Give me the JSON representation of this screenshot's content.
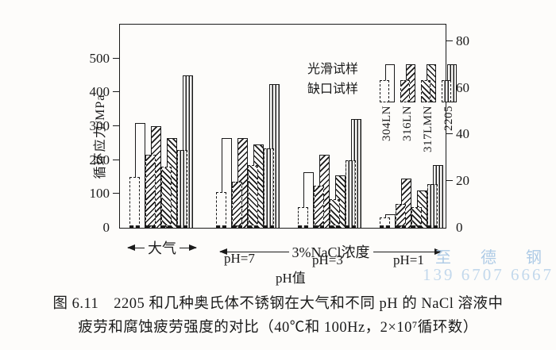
{
  "caption": {
    "line1": "图 6.11　2205 和几种奥氏体不锈钢在大气和不同 pH 的 NaCl 溶液中",
    "line2": "疲劳和腐蚀疲劳强度的对比（40℃和 100Hz，2×10⁷循环数）"
  },
  "watermark": {
    "line1": "至 德 钢 业",
    "line2": "139 6707 6667",
    "color": "#aecbe6"
  },
  "chart_data": {
    "type": "bar",
    "title": "",
    "ylabel": "循环应力/MPa",
    "left_axis": {
      "unit": "MPa",
      "ticks": [
        0,
        100,
        200,
        300,
        400,
        500
      ],
      "max": 600,
      "grid": false
    },
    "right_axis": {
      "ticks": [
        0,
        20,
        40,
        60,
        80
      ],
      "mpa_per_tick_unit": 6.895
    },
    "legend": {
      "smooth_label": "光滑试样",
      "notched_label": "缺口试样",
      "position": "top-right-inside"
    },
    "categories": [
      "大气",
      "pH=7",
      "pH=3",
      "pH=1"
    ],
    "series": [
      {
        "name": "304LN",
        "pattern": "plain",
        "smooth": [
          310,
          265,
          165,
          40
        ],
        "notched": [
          150,
          105,
          60,
          30
        ]
      },
      {
        "name": "316LN",
        "pattern": "diag-up",
        "smooth": [
          300,
          265,
          215,
          145
        ],
        "notched": [
          215,
          135,
          125,
          70
        ]
      },
      {
        "name": "317LMN",
        "pattern": "diag-down",
        "smooth": [
          265,
          245,
          155,
          110
        ],
        "notched": [
          180,
          185,
          85,
          60
        ]
      },
      {
        "name": "2205",
        "pattern": "vert",
        "smooth": [
          450,
          425,
          320,
          185
        ],
        "notched": [
          230,
          235,
          200,
          130
        ]
      }
    ],
    "x_annotations": {
      "atmosphere": "大气",
      "nacl": "3%NaCl浓度",
      "ph_axis_label": "pH值",
      "ph7": "pH=7",
      "ph3": "pH=3",
      "ph1": "pH=1"
    },
    "ink_color": "#1a1a1a"
  }
}
